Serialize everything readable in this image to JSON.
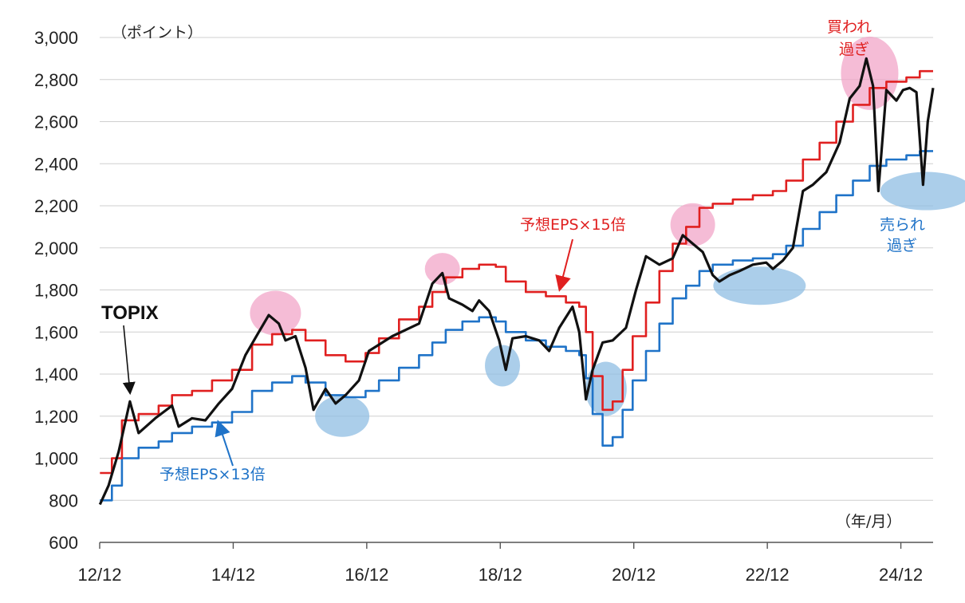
{
  "chart_data": {
    "type": "line",
    "title": "",
    "ylabel": "（ポイント）",
    "xlabel": "（年/月）",
    "ylim": [
      600,
      3000
    ],
    "yticks": [
      600,
      800,
      1000,
      1200,
      1400,
      1600,
      1800,
      2000,
      2200,
      2400,
      2600,
      2800,
      3000
    ],
    "ytick_labels": [
      "600",
      "800",
      "1,000",
      "1,200",
      "1,400",
      "1,600",
      "1,800",
      "2,000",
      "2,200",
      "2,400",
      "2,600",
      "2,800",
      "3,000"
    ],
    "xlim": [
      2012.917,
      2025.4
    ],
    "xticks": [
      2012.917,
      2014.917,
      2016.917,
      2018.917,
      2020.917,
      2022.917,
      2024.917
    ],
    "xtick_labels": [
      "12/12",
      "14/12",
      "16/12",
      "18/12",
      "20/12",
      "22/12",
      "24/12"
    ],
    "grid": "horizontal",
    "series": [
      {
        "name": "TOPIX",
        "color": "#111111",
        "points": [
          [
            2012.92,
            780
          ],
          [
            2013.05,
            870
          ],
          [
            2013.2,
            1030
          ],
          [
            2013.37,
            1270
          ],
          [
            2013.5,
            1120
          ],
          [
            2013.75,
            1190
          ],
          [
            2014.0,
            1250
          ],
          [
            2014.1,
            1150
          ],
          [
            2014.3,
            1190
          ],
          [
            2014.5,
            1180
          ],
          [
            2014.7,
            1260
          ],
          [
            2014.9,
            1330
          ],
          [
            2015.1,
            1490
          ],
          [
            2015.3,
            1600
          ],
          [
            2015.45,
            1680
          ],
          [
            2015.6,
            1640
          ],
          [
            2015.7,
            1560
          ],
          [
            2015.85,
            1580
          ],
          [
            2016.0,
            1430
          ],
          [
            2016.12,
            1230
          ],
          [
            2016.3,
            1330
          ],
          [
            2016.45,
            1260
          ],
          [
            2016.6,
            1300
          ],
          [
            2016.8,
            1370
          ],
          [
            2016.95,
            1510
          ],
          [
            2017.1,
            1540
          ],
          [
            2017.3,
            1580
          ],
          [
            2017.5,
            1610
          ],
          [
            2017.7,
            1640
          ],
          [
            2017.9,
            1830
          ],
          [
            2018.05,
            1880
          ],
          [
            2018.15,
            1760
          ],
          [
            2018.35,
            1730
          ],
          [
            2018.5,
            1700
          ],
          [
            2018.6,
            1750
          ],
          [
            2018.75,
            1700
          ],
          [
            2018.9,
            1560
          ],
          [
            2019.0,
            1420
          ],
          [
            2019.1,
            1570
          ],
          [
            2019.3,
            1580
          ],
          [
            2019.5,
            1560
          ],
          [
            2019.65,
            1510
          ],
          [
            2019.8,
            1620
          ],
          [
            2020.0,
            1720
          ],
          [
            2020.1,
            1600
          ],
          [
            2020.2,
            1280
          ],
          [
            2020.3,
            1420
          ],
          [
            2020.45,
            1550
          ],
          [
            2020.6,
            1560
          ],
          [
            2020.8,
            1620
          ],
          [
            2020.95,
            1800
          ],
          [
            2021.1,
            1960
          ],
          [
            2021.3,
            1920
          ],
          [
            2021.5,
            1950
          ],
          [
            2021.65,
            2060
          ],
          [
            2021.8,
            2020
          ],
          [
            2021.95,
            1980
          ],
          [
            2022.1,
            1870
          ],
          [
            2022.2,
            1840
          ],
          [
            2022.35,
            1870
          ],
          [
            2022.5,
            1890
          ],
          [
            2022.7,
            1920
          ],
          [
            2022.9,
            1930
          ],
          [
            2023.0,
            1900
          ],
          [
            2023.15,
            1940
          ],
          [
            2023.3,
            2000
          ],
          [
            2023.45,
            2270
          ],
          [
            2023.6,
            2300
          ],
          [
            2023.8,
            2360
          ],
          [
            2024.0,
            2500
          ],
          [
            2024.15,
            2710
          ],
          [
            2024.3,
            2770
          ],
          [
            2024.4,
            2900
          ],
          [
            2024.5,
            2770
          ],
          [
            2024.58,
            2270
          ],
          [
            2024.7,
            2750
          ],
          [
            2024.85,
            2700
          ],
          [
            2024.95,
            2750
          ],
          [
            2025.05,
            2760
          ],
          [
            2025.15,
            2740
          ],
          [
            2025.25,
            2300
          ],
          [
            2025.32,
            2600
          ],
          [
            2025.4,
            2760
          ]
        ]
      },
      {
        "name": "予想EPS×15倍",
        "color": "#e02020",
        "points": [
          [
            2012.92,
            930
          ],
          [
            2013.1,
            1000
          ],
          [
            2013.25,
            1180
          ],
          [
            2013.5,
            1210
          ],
          [
            2013.8,
            1250
          ],
          [
            2014.0,
            1300
          ],
          [
            2014.3,
            1320
          ],
          [
            2014.6,
            1370
          ],
          [
            2014.9,
            1420
          ],
          [
            2015.2,
            1540
          ],
          [
            2015.5,
            1590
          ],
          [
            2015.8,
            1610
          ],
          [
            2016.0,
            1560
          ],
          [
            2016.3,
            1490
          ],
          [
            2016.6,
            1460
          ],
          [
            2016.9,
            1500
          ],
          [
            2017.1,
            1570
          ],
          [
            2017.4,
            1660
          ],
          [
            2017.7,
            1720
          ],
          [
            2017.9,
            1790
          ],
          [
            2018.1,
            1860
          ],
          [
            2018.35,
            1900
          ],
          [
            2018.6,
            1920
          ],
          [
            2018.85,
            1910
          ],
          [
            2019.0,
            1840
          ],
          [
            2019.3,
            1790
          ],
          [
            2019.6,
            1770
          ],
          [
            2019.9,
            1740
          ],
          [
            2020.1,
            1720
          ],
          [
            2020.2,
            1600
          ],
          [
            2020.3,
            1390
          ],
          [
            2020.45,
            1230
          ],
          [
            2020.6,
            1270
          ],
          [
            2020.75,
            1420
          ],
          [
            2020.9,
            1580
          ],
          [
            2021.1,
            1740
          ],
          [
            2021.3,
            1890
          ],
          [
            2021.5,
            2020
          ],
          [
            2021.7,
            2100
          ],
          [
            2021.9,
            2190
          ],
          [
            2022.1,
            2210
          ],
          [
            2022.4,
            2230
          ],
          [
            2022.7,
            2250
          ],
          [
            2023.0,
            2270
          ],
          [
            2023.2,
            2320
          ],
          [
            2023.45,
            2420
          ],
          [
            2023.7,
            2500
          ],
          [
            2023.95,
            2600
          ],
          [
            2024.2,
            2680
          ],
          [
            2024.45,
            2760
          ],
          [
            2024.7,
            2790
          ],
          [
            2025.0,
            2810
          ],
          [
            2025.2,
            2840
          ],
          [
            2025.4,
            2840
          ]
        ]
      },
      {
        "name": "予想EPS×13倍",
        "color": "#1f73c8",
        "points": [
          [
            2012.92,
            800
          ],
          [
            2013.1,
            870
          ],
          [
            2013.25,
            1000
          ],
          [
            2013.5,
            1050
          ],
          [
            2013.8,
            1080
          ],
          [
            2014.0,
            1120
          ],
          [
            2014.3,
            1150
          ],
          [
            2014.6,
            1170
          ],
          [
            2014.9,
            1220
          ],
          [
            2015.2,
            1320
          ],
          [
            2015.5,
            1360
          ],
          [
            2015.8,
            1390
          ],
          [
            2016.0,
            1360
          ],
          [
            2016.3,
            1300
          ],
          [
            2016.6,
            1290
          ],
          [
            2016.9,
            1320
          ],
          [
            2017.1,
            1370
          ],
          [
            2017.4,
            1430
          ],
          [
            2017.7,
            1490
          ],
          [
            2017.9,
            1550
          ],
          [
            2018.1,
            1610
          ],
          [
            2018.35,
            1650
          ],
          [
            2018.6,
            1670
          ],
          [
            2018.85,
            1650
          ],
          [
            2019.0,
            1600
          ],
          [
            2019.3,
            1560
          ],
          [
            2019.6,
            1530
          ],
          [
            2019.9,
            1510
          ],
          [
            2020.1,
            1490
          ],
          [
            2020.2,
            1380
          ],
          [
            2020.3,
            1210
          ],
          [
            2020.45,
            1060
          ],
          [
            2020.6,
            1100
          ],
          [
            2020.75,
            1230
          ],
          [
            2020.9,
            1370
          ],
          [
            2021.1,
            1510
          ],
          [
            2021.3,
            1640
          ],
          [
            2021.5,
            1760
          ],
          [
            2021.7,
            1820
          ],
          [
            2021.9,
            1890
          ],
          [
            2022.1,
            1920
          ],
          [
            2022.4,
            1940
          ],
          [
            2022.7,
            1950
          ],
          [
            2023.0,
            1970
          ],
          [
            2023.2,
            2010
          ],
          [
            2023.45,
            2090
          ],
          [
            2023.7,
            2170
          ],
          [
            2023.95,
            2250
          ],
          [
            2024.2,
            2320
          ],
          [
            2024.45,
            2390
          ],
          [
            2024.7,
            2420
          ],
          [
            2025.0,
            2440
          ],
          [
            2025.2,
            2460
          ],
          [
            2025.4,
            2460
          ]
        ]
      }
    ],
    "annotations": [
      {
        "text": "TOPIX",
        "color": "#111111",
        "arrow_to": [
          2013.37,
          1280
        ]
      },
      {
        "text": "予想EPS×15倍",
        "color": "#e02020",
        "arrow_to": [
          2019.75,
          1800
        ]
      },
      {
        "text": "予想EPS×13倍",
        "color": "#1f73c8",
        "arrow_to": [
          2014.85,
          1210
        ]
      },
      {
        "text": "買われ過ぎ",
        "lines": [
          "買われ",
          "過ぎ"
        ],
        "color": "#e02020"
      },
      {
        "text": "売られ過ぎ",
        "lines": [
          "売られ",
          "過ぎ"
        ],
        "color": "#1f73c8"
      }
    ],
    "highlights": [
      {
        "kind": "overbought",
        "color": "#f2a6c8",
        "x": 2015.55,
        "y": 1690
      },
      {
        "kind": "overbought",
        "color": "#f2a6c8",
        "x": 2018.05,
        "y": 1900
      },
      {
        "kind": "overbought",
        "color": "#f2a6c8",
        "x": 2021.8,
        "y": 2110
      },
      {
        "kind": "overbought",
        "color": "#f2a6c8",
        "x": 2024.45,
        "y": 2830
      },
      {
        "kind": "oversold",
        "color": "#8fbde3",
        "x": 2016.55,
        "y": 1200
      },
      {
        "kind": "oversold",
        "color": "#8fbde3",
        "x": 2018.95,
        "y": 1440
      },
      {
        "kind": "oversold",
        "color": "#8fbde3",
        "x": 2020.5,
        "y": 1330
      },
      {
        "kind": "oversold",
        "color": "#8fbde3",
        "x": 2022.8,
        "y": 1820
      },
      {
        "kind": "oversold",
        "color": "#8fbde3",
        "x": 2025.3,
        "y": 2270
      }
    ]
  }
}
